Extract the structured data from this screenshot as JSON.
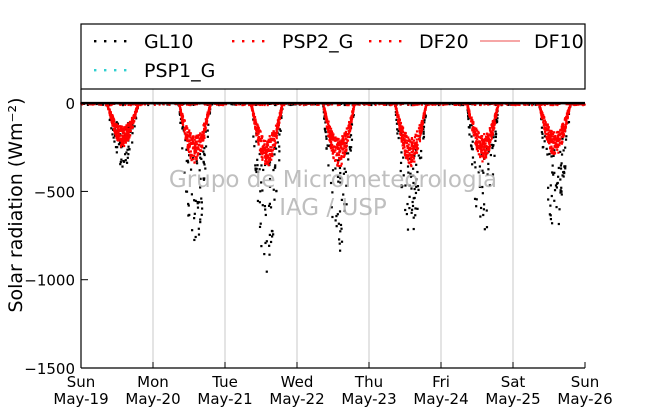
{
  "chart_data": {
    "type": "scatter",
    "title": "",
    "xlabel": "",
    "ylabel": "Solar radiation (Wm⁻²)",
    "ylim": [
      -1500,
      80
    ],
    "xlim": [
      0,
      7
    ],
    "yticks": [
      {
        "value": 0,
        "label": "0"
      },
      {
        "value": -500,
        "label": "−500"
      },
      {
        "value": -1000,
        "label": "−1000"
      },
      {
        "value": -1500,
        "label": "−1500"
      }
    ],
    "xticks": [
      {
        "value": 0,
        "day": "Sun",
        "date": "May-19"
      },
      {
        "value": 1,
        "day": "Mon",
        "date": "May-20"
      },
      {
        "value": 2,
        "day": "Tue",
        "date": "May-21"
      },
      {
        "value": 3,
        "day": "Wed",
        "date": "May-22"
      },
      {
        "value": 4,
        "day": "Thu",
        "date": "May-23"
      },
      {
        "value": 5,
        "day": "Fri",
        "date": "May-24"
      },
      {
        "value": 6,
        "day": "Sat",
        "date": "May-25"
      },
      {
        "value": 7,
        "day": "Sun",
        "date": "May-26"
      }
    ],
    "grid": "vertical",
    "legend_position": "top",
    "watermark": [
      "Grupo de Micrometeorologia",
      "IAG / USP"
    ],
    "day_offset": 0.58,
    "series": [
      {
        "name": "GL10",
        "color": "#000000",
        "marker": "dot",
        "daily_peak": [
          -370,
          -820,
          -960,
          -860,
          -790,
          -780,
          -760
        ]
      },
      {
        "name": "PSP2_G",
        "color": "#ff0000",
        "marker": "dot",
        "daily_peak": [
          -250,
          -340,
          -360,
          -370,
          -360,
          -330,
          -300
        ]
      },
      {
        "name": "DF20",
        "color": "#ff0000",
        "marker": "dot",
        "daily_peak": [
          -240,
          -330,
          -350,
          -360,
          -350,
          -320,
          -290
        ]
      },
      {
        "name": "DF10",
        "color": "#f07070",
        "marker": "line",
        "daily_peak": []
      },
      {
        "name": "PSP1_G",
        "color": "#30d0d0",
        "marker": "dot",
        "daily_peak": []
      }
    ]
  }
}
